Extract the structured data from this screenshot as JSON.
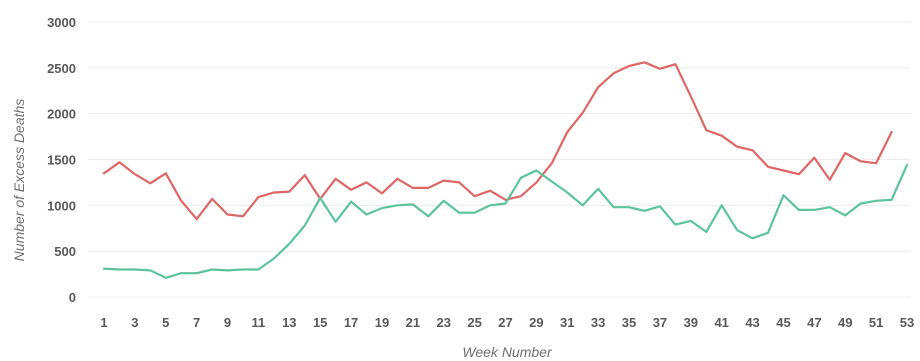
{
  "chart_data": {
    "type": "line",
    "title": "",
    "xlabel": "Week Number",
    "ylabel": "Number of Excess Deaths",
    "x": [
      1,
      2,
      3,
      4,
      5,
      6,
      7,
      8,
      9,
      10,
      11,
      12,
      13,
      14,
      15,
      16,
      17,
      18,
      19,
      20,
      21,
      22,
      23,
      24,
      25,
      26,
      27,
      28,
      29,
      30,
      31,
      32,
      33,
      34,
      35,
      36,
      37,
      38,
      39,
      40,
      41,
      42,
      43,
      44,
      45,
      46,
      47,
      48,
      49,
      50,
      51,
      52,
      53
    ],
    "xticks": [
      1,
      3,
      5,
      7,
      9,
      11,
      13,
      15,
      17,
      19,
      21,
      23,
      25,
      27,
      29,
      31,
      33,
      35,
      37,
      39,
      41,
      43,
      45,
      47,
      49,
      51,
      53
    ],
    "ylim": [
      0,
      3000
    ],
    "yticks": [
      0,
      500,
      1000,
      1500,
      2000,
      2500,
      3000
    ],
    "grid": true,
    "legend": "none",
    "series": [
      {
        "color": "#e06666",
        "values": [
          1350,
          1470,
          1340,
          1240,
          1350,
          1050,
          850,
          1070,
          900,
          880,
          1090,
          1140,
          1150,
          1330,
          1070,
          1290,
          1170,
          1250,
          1130,
          1290,
          1190,
          1190,
          1270,
          1250,
          1100,
          1160,
          1060,
          1100,
          1250,
          1460,
          1800,
          2010,
          2290,
          2440,
          2520,
          2560,
          2490,
          2540,
          2190,
          1820,
          1760,
          1640,
          1600,
          1420,
          1380,
          1340,
          1520,
          1280,
          1570,
          1480,
          1460,
          1800,
          null
        ]
      },
      {
        "color": "#5cc49a",
        "values": [
          310,
          300,
          300,
          290,
          210,
          260,
          260,
          300,
          290,
          300,
          300,
          420,
          580,
          780,
          1080,
          820,
          1040,
          900,
          970,
          1000,
          1010,
          880,
          1050,
          920,
          920,
          1000,
          1020,
          1300,
          1380,
          1260,
          1140,
          1000,
          1180,
          980,
          980,
          940,
          990,
          790,
          830,
          710,
          1000,
          730,
          640,
          700,
          1110,
          950,
          950,
          980,
          890,
          1020,
          1050,
          1060,
          1440
        ]
      }
    ]
  }
}
